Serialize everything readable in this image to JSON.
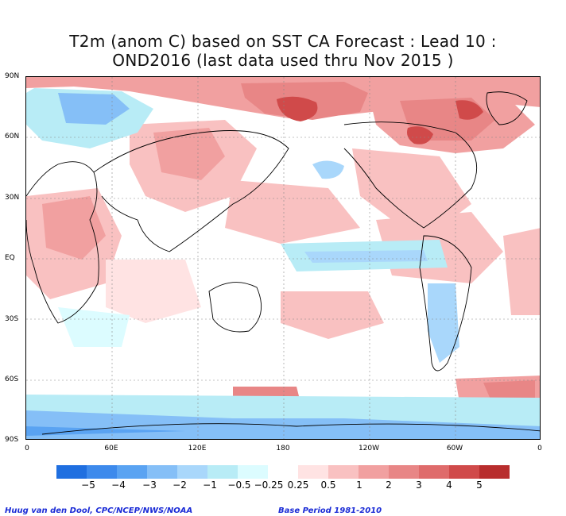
{
  "title_line1": "T2m (anom C) based on SST CA Forecast : Lead 10 :",
  "title_line2": "OND2016 (last data used thru Nov 2015 )",
  "lat_labels": [
    "90N",
    "60N",
    "30N",
    "EQ",
    "30S",
    "60S",
    "90S"
  ],
  "lon_labels": [
    "0",
    "60E",
    "120E",
    "180",
    "120W",
    "60W",
    "0"
  ],
  "legend": {
    "colors": [
      "#1f6fe0",
      "#3d8aec",
      "#5aa3f2",
      "#85bff7",
      "#a9d7fb",
      "#b8ecf6",
      "#dcfcff",
      "#ffffff",
      "#ffe3e3",
      "#f9c1c1",
      "#f1a0a0",
      "#e88686",
      "#df6b6b",
      "#d04a4a",
      "#b82d2d"
    ],
    "labels": [
      "−5",
      "−4",
      "−3",
      "−2",
      "−1",
      "−0.5",
      "−0.25",
      "0.25",
      "0.5",
      "1",
      "2",
      "3",
      "4",
      "5"
    ]
  },
  "credit_left": "Huug van den Dool, CPC/NCEP/NWS/NOAA",
  "credit_right": "Base Period 1981-2010"
}
